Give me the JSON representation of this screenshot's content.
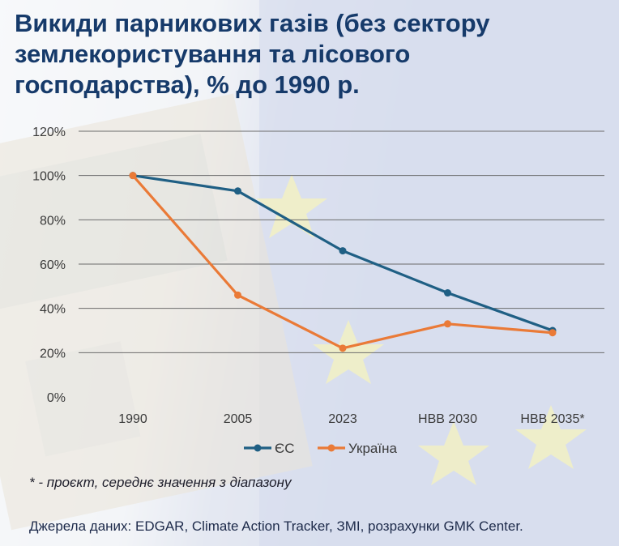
{
  "title": "Викиди парникових газів (без сектору землекористування та лісового господарства), % до 1990 р.",
  "chart_data": {
    "type": "line",
    "categories": [
      "1990",
      "2005",
      "2023",
      "НВВ 2030",
      "НВВ 2035*"
    ],
    "ylim": [
      0,
      120
    ],
    "y_ticks": [
      "0%",
      "20%",
      "40%",
      "60%",
      "80%",
      "100%",
      "120%"
    ],
    "y_tick_values": [
      0,
      20,
      40,
      60,
      80,
      100,
      120
    ],
    "grid": true,
    "legend_position": "bottom-center",
    "series": [
      {
        "name": "ЄС",
        "color": "#1f5f84",
        "values": [
          100,
          93,
          66,
          47,
          30
        ]
      },
      {
        "name": "Україна",
        "color": "#ea7a37",
        "values": [
          100,
          46,
          22,
          33,
          29
        ]
      }
    ]
  },
  "footnote": "* - проєкт, середнє значення з діапазону",
  "source": "Джерела даних: EDGAR, Climate Action Tracker, ЗМІ, розрахунки GMK Center.",
  "background_colors": {
    "eu_flag_blue": "#7f95c9",
    "stars": "#e6dc6a"
  }
}
